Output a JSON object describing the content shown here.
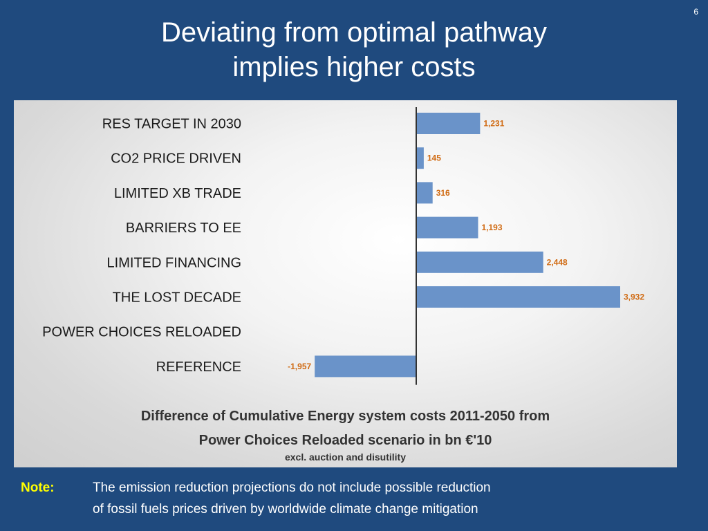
{
  "slide": {
    "page_number": "6",
    "title_line1": "Deviating from optimal pathway",
    "title_line2": "implies higher costs"
  },
  "chart_data": {
    "type": "bar",
    "orientation": "horizontal",
    "categories": [
      "RES TARGET IN 2030",
      "CO2 PRICE DRIVEN",
      "LIMITED XB TRADE",
      "BARRIERS TO EE",
      "LIMITED FINANCING",
      "THE LOST DECADE",
      "POWER CHOICES RELOADED",
      "REFERENCE"
    ],
    "values": [
      1231,
      145,
      316,
      1193,
      2448,
      3932,
      null,
      -1957
    ],
    "value_labels": [
      "1,231",
      "145",
      "316",
      "1,193",
      "2,448",
      "3,932",
      "",
      "-1,957"
    ],
    "xlim": [
      -2500,
      4500
    ],
    "bar_color": "#6a93c9",
    "label_color": "#d06a12",
    "grid": false,
    "legend": "none",
    "caption_line1": "Difference of Cumulative Energy system costs 2011-2050 from",
    "caption_line2": "Power Choices Reloaded scenario in bn €'10",
    "caption_sub": "excl. auction and disutility"
  },
  "note": {
    "label": "Note:",
    "line1": "The emission reduction projections do not include possible reduction",
    "line2": "of fossil fuels prices driven by worldwide climate change mitigation"
  }
}
